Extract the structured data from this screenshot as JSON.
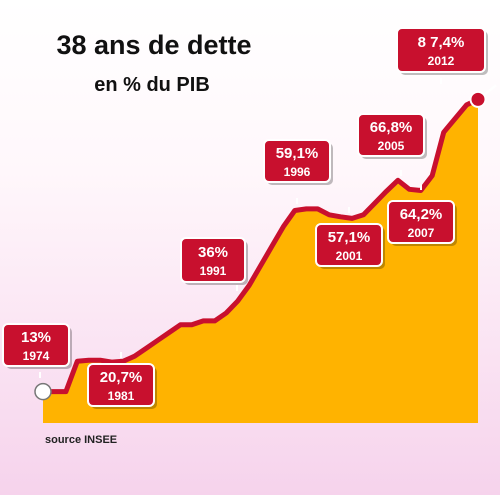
{
  "title": "38 ans de dette",
  "subtitle": "en % du PIB",
  "source": "source INSEE",
  "colors": {
    "area": "#ffb300",
    "line": "#c8102e",
    "label_bg": "#c8102e",
    "label_border": "#ffffff"
  },
  "chart_data": {
    "type": "area",
    "title": "38 ans de dette",
    "subtitle": "en % du PIB",
    "xlabel": "",
    "ylabel": "",
    "grid": false,
    "xlim": [
      1974,
      2012
    ],
    "ylim": [
      5,
      88
    ],
    "x": [
      1974,
      1975,
      1976,
      1977,
      1978,
      1979,
      1980,
      1981,
      1982,
      1983,
      1984,
      1985,
      1986,
      1987,
      1988,
      1989,
      1990,
      1991,
      1992,
      1993,
      1994,
      1995,
      1996,
      1997,
      1998,
      1999,
      2000,
      2001,
      2002,
      2003,
      2004,
      2005,
      2006,
      2007,
      2008,
      2009,
      2010,
      2011,
      2012
    ],
    "y": [
      13,
      13,
      13,
      20.7,
      21,
      21,
      20.5,
      20.7,
      22,
      24,
      26,
      28,
      30,
      30,
      31,
      31,
      33,
      36,
      40,
      45,
      50,
      55,
      59.1,
      59.5,
      59.5,
      58,
      57.5,
      57.1,
      58,
      61,
      64,
      66.8,
      64.5,
      64.2,
      68,
      79,
      82.5,
      86,
      87.4
    ],
    "labels": [
      {
        "value": "13%",
        "year": "1974"
      },
      {
        "value": "20,7%",
        "year": "1981"
      },
      {
        "value": "36%",
        "year": "1991"
      },
      {
        "value": "59,1%",
        "year": "1996"
      },
      {
        "value": "57,1%",
        "year": "2001"
      },
      {
        "value": "66,8%",
        "year": "2005"
      },
      {
        "value": "64,2%",
        "year": "2007"
      },
      {
        "value": "8 7,4%",
        "year": "2012"
      }
    ]
  }
}
